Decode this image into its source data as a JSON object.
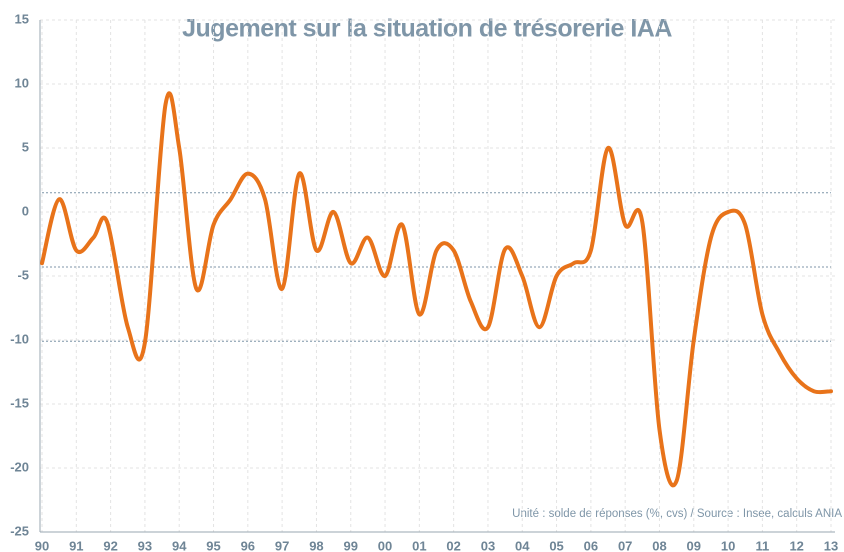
{
  "chart_data": {
    "type": "line",
    "title": "Jugement sur la situation de trésorerie IAA",
    "note": "Unité : solde de réponses (%, cvs) / Source : Insee, calculs ANIA",
    "xlim": [
      1990,
      2013
    ],
    "xticks": [
      {
        "value": 1990,
        "label": "90"
      },
      {
        "value": 1991,
        "label": "91"
      },
      {
        "value": 1992,
        "label": "92"
      },
      {
        "value": 1993,
        "label": "93"
      },
      {
        "value": 1994,
        "label": "94"
      },
      {
        "value": 1995,
        "label": "95"
      },
      {
        "value": 1996,
        "label": "96"
      },
      {
        "value": 1997,
        "label": "97"
      },
      {
        "value": 1998,
        "label": "98"
      },
      {
        "value": 1999,
        "label": "99"
      },
      {
        "value": 2000,
        "label": "00"
      },
      {
        "value": 2001,
        "label": "01"
      },
      {
        "value": 2002,
        "label": "02"
      },
      {
        "value": 2003,
        "label": "03"
      },
      {
        "value": 2004,
        "label": "04"
      },
      {
        "value": 2005,
        "label": "05"
      },
      {
        "value": 2006,
        "label": "06"
      },
      {
        "value": 2007,
        "label": "07"
      },
      {
        "value": 2008,
        "label": "08"
      },
      {
        "value": 2009,
        "label": "09"
      },
      {
        "value": 2010,
        "label": "10"
      },
      {
        "value": 2011,
        "label": "11"
      },
      {
        "value": 2012,
        "label": "12"
      },
      {
        "value": 2013,
        "label": "13"
      }
    ],
    "ylim": [
      -25,
      15
    ],
    "yticks": [
      -25,
      -20,
      -15,
      -10,
      -5,
      0,
      5,
      10,
      15
    ],
    "grid": true,
    "reference_lines": [
      1.5,
      -4.3,
      -10.1
    ],
    "x": [
      1990,
      1990.5,
      1991,
      1991.5,
      1991.9,
      1992.5,
      1993,
      1993.6,
      1994,
      1994.5,
      1995,
      1995.5,
      1996,
      1996.5,
      1997,
      1997.5,
      1998,
      1998.5,
      1999,
      1999.5,
      2000,
      2000.5,
      2001,
      2001.5,
      2002,
      2002.5,
      2003,
      2003.5,
      2004,
      2004.5,
      2005,
      2005.5,
      2006,
      2006.5,
      2007,
      2007.5,
      2008,
      2008.5,
      2009,
      2009.5,
      2010,
      2010.5,
      2011,
      2011.5,
      2012,
      2012.5,
      2013
    ],
    "series": [
      {
        "color": "#e8731a",
        "values": [
          -4,
          1,
          -3,
          -2,
          -0.8,
          -9,
          -10.2,
          8.4,
          5,
          -6,
          -1,
          1,
          3,
          1,
          -6,
          3,
          -3,
          0,
          -4,
          -2,
          -5,
          -1,
          -8,
          -3,
          -3,
          -7,
          -9,
          -2.9,
          -5,
          -9,
          -5,
          -4,
          -3,
          5,
          -1,
          -0.8,
          -17,
          -21,
          -10,
          -2,
          0,
          -1,
          -8,
          -11,
          -13,
          -14,
          -14
        ]
      }
    ]
  }
}
